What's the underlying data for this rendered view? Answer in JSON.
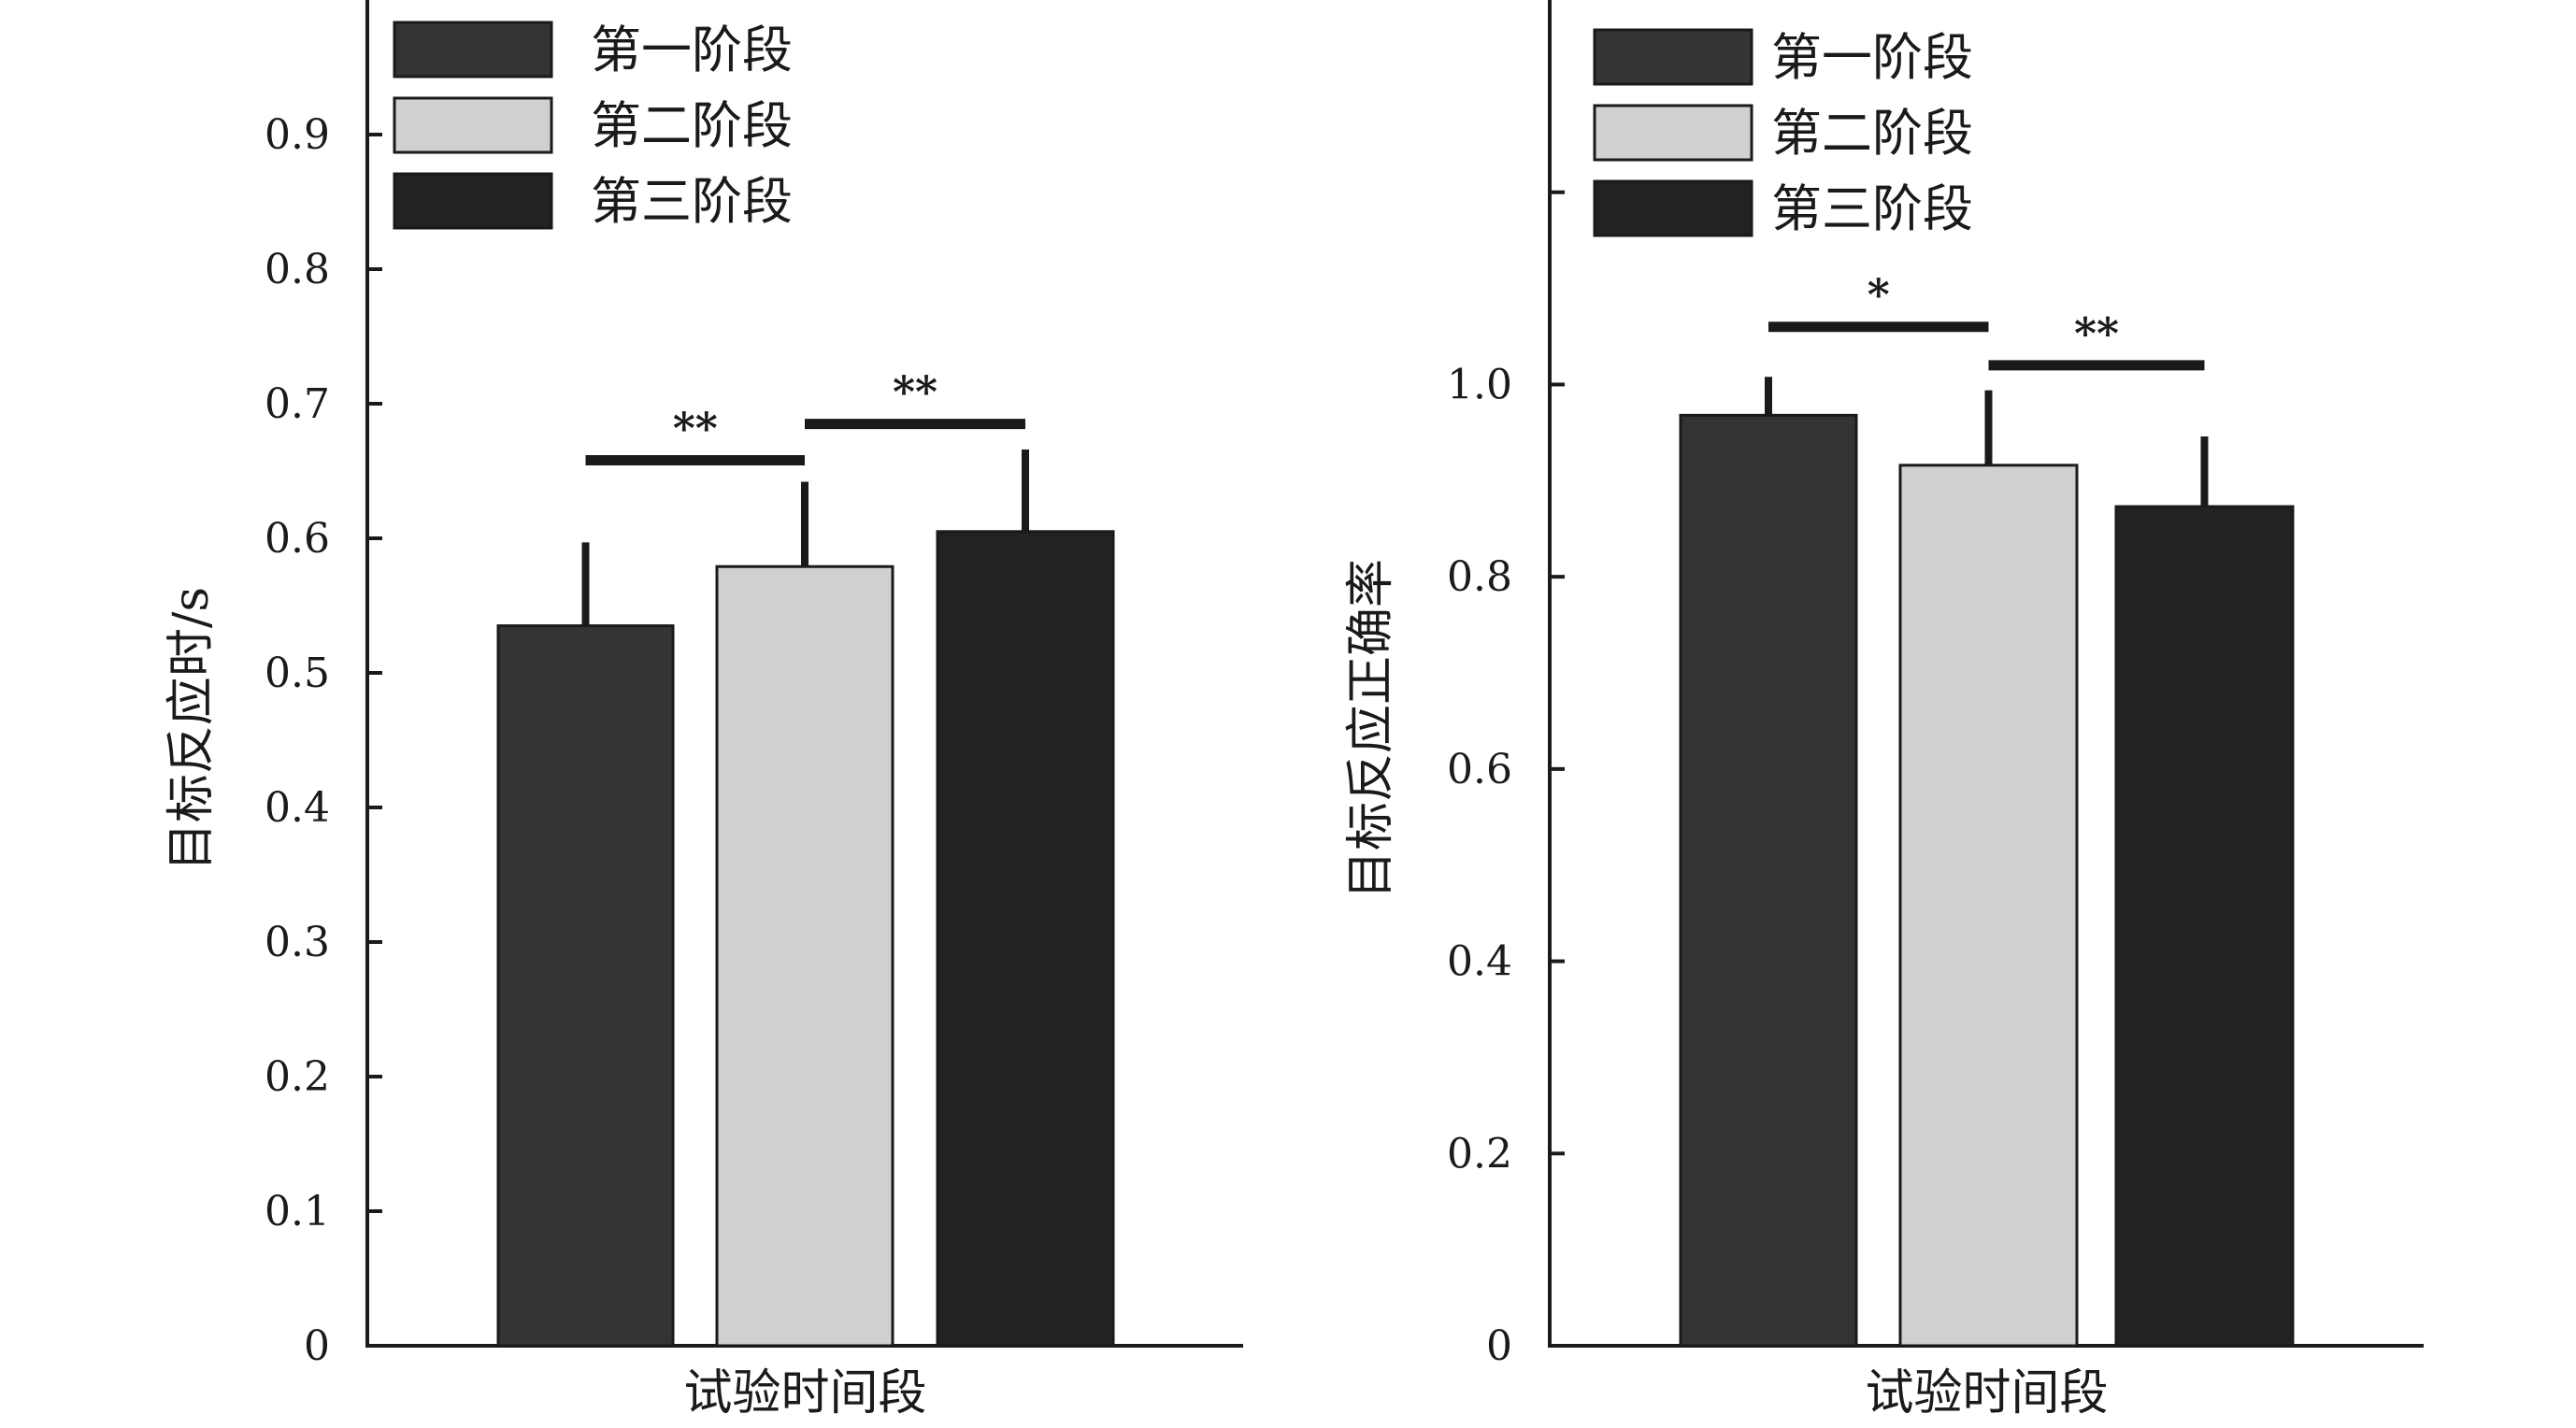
{
  "chart_data": [
    {
      "type": "bar",
      "ylabel": "目标反应时/s",
      "xlabel": "试验时间段",
      "ylim": [
        0,
        1.0
      ],
      "yticks": [
        0,
        0.1,
        0.2,
        0.3,
        0.4,
        0.5,
        0.6,
        0.7,
        0.8,
        0.9
      ],
      "ytick_labels": [
        "0",
        "0.1",
        "0.2",
        "0.3",
        "0.4",
        "0.5",
        "0.6",
        "0.7",
        "0.8",
        "0.9"
      ],
      "legend_position": "top-left",
      "series": [
        {
          "name": "第一阶段",
          "value": 0.535,
          "error": 0.062,
          "color": "#343434"
        },
        {
          "name": "第二阶段",
          "value": 0.579,
          "error": 0.063,
          "color": "#d0d0d0"
        },
        {
          "name": "第三阶段",
          "value": 0.605,
          "error": 0.061,
          "color": "#232122"
        }
      ],
      "significance": [
        {
          "from": 0,
          "to": 1,
          "label": "**",
          "y": 0.658
        },
        {
          "from": 1,
          "to": 2,
          "label": "**",
          "y": 0.685
        }
      ]
    },
    {
      "type": "bar",
      "ylabel": "目标反应正确率",
      "xlabel": "试验时间段",
      "ylim": [
        0,
        1.4
      ],
      "yticks": [
        0,
        0.2,
        0.4,
        0.6,
        0.8,
        1.0,
        1.2
      ],
      "ytick_labels": [
        "0",
        "0.2",
        "0.4",
        "0.6",
        "0.8",
        "1.0",
        ""
      ],
      "legend_position": "top-left",
      "series": [
        {
          "name": "第一阶段",
          "value": 0.968,
          "error": 0.04,
          "color": "#343434"
        },
        {
          "name": "第二阶段",
          "value": 0.916,
          "error": 0.078,
          "color": "#d0d0d0"
        },
        {
          "name": "第三阶段",
          "value": 0.873,
          "error": 0.073,
          "color": "#232122"
        }
      ],
      "significance": [
        {
          "from": 0,
          "to": 1,
          "label": "*",
          "y": 1.06
        },
        {
          "from": 1,
          "to": 2,
          "label": "**",
          "y": 1.02
        }
      ]
    }
  ]
}
